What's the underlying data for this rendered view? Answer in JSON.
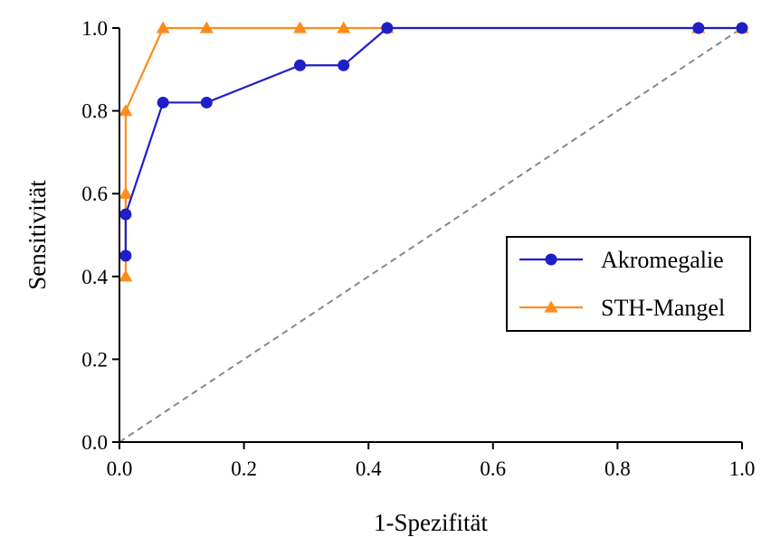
{
  "chart_data": {
    "type": "line",
    "title": "",
    "xlabel": "1-Spezifität",
    "ylabel": "Sensitivität",
    "xlim": [
      0,
      1
    ],
    "ylim": [
      0,
      1
    ],
    "xticks": [
      "0.0",
      "0.2",
      "0.4",
      "0.6",
      "0.8",
      "1.0"
    ],
    "yticks": [
      "0.0",
      "0.2",
      "0.4",
      "0.6",
      "0.8",
      "1.0"
    ],
    "grid": false,
    "legend_position": "center-right",
    "reference_line": {
      "style": "dashed",
      "color": "#888888",
      "from": [
        0,
        0
      ],
      "to": [
        1,
        1
      ]
    },
    "series": [
      {
        "name": "Akromegalie",
        "marker": "circle",
        "color": "#1f1fc8",
        "x": [
          0.01,
          0.01,
          0.07,
          0.14,
          0.29,
          0.36,
          0.43,
          0.93,
          1.0
        ],
        "y": [
          0.45,
          0.55,
          0.82,
          0.82,
          0.91,
          0.91,
          1.0,
          1.0,
          1.0
        ]
      },
      {
        "name": "STH-Mangel",
        "marker": "triangle",
        "color": "#ff8c1a",
        "x": [
          0.01,
          0.01,
          0.01,
          0.07,
          0.14,
          0.29,
          0.36,
          0.43,
          0.93,
          1.0
        ],
        "y": [
          0.4,
          0.6,
          0.8,
          1.0,
          1.0,
          1.0,
          1.0,
          1.0,
          1.0,
          1.0
        ]
      }
    ]
  }
}
